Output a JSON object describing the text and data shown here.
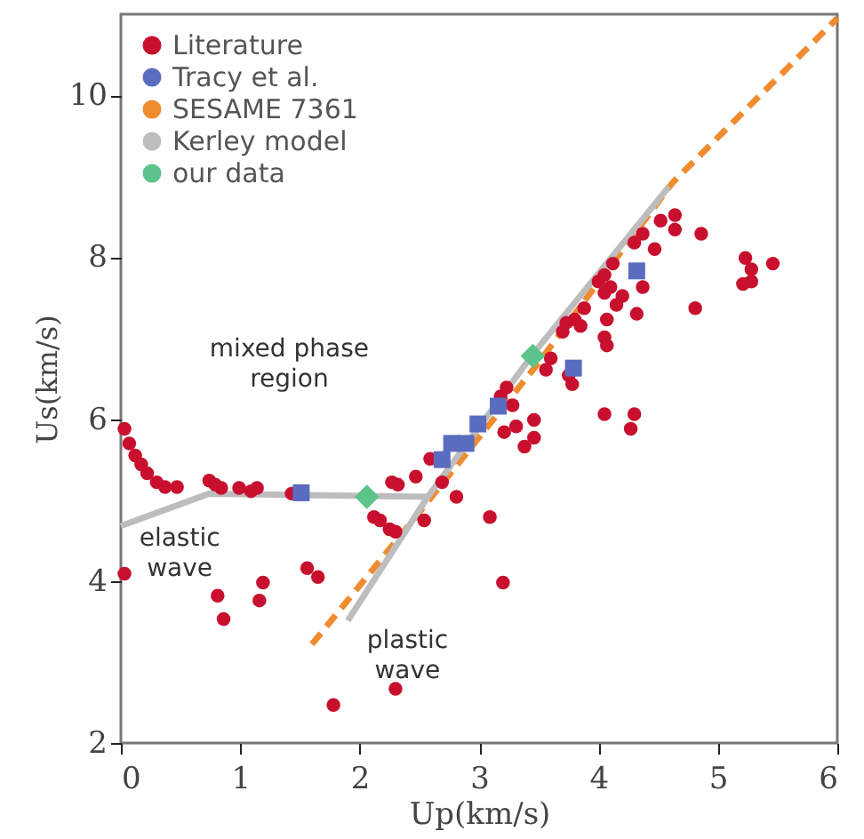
{
  "chart_data": {
    "type": "scatter",
    "xlabel": "Up(km/s)",
    "ylabel": "Us(km/s)",
    "xlim": [
      0,
      6
    ],
    "ylim": [
      2,
      11
    ],
    "xticks": [
      {
        "value": 0,
        "label": "0"
      },
      {
        "value": 1,
        "label": "1"
      },
      {
        "value": 2,
        "label": "2"
      },
      {
        "value": 3,
        "label": "3"
      },
      {
        "value": 4,
        "label": "4"
      },
      {
        "value": 5,
        "label": "5"
      },
      {
        "value": 6,
        "label": "6"
      }
    ],
    "yticks": [
      2,
      4,
      6,
      8,
      10
    ],
    "grid": false,
    "legend": "top left",
    "series": [
      {
        "name": "Literature",
        "marker": "circle",
        "color": "#c8102e",
        "x": [
          0.03,
          0.07,
          0.12,
          0.17,
          0.22,
          0.3,
          0.37,
          0.47,
          0.74,
          0.79,
          0.84,
          0.99,
          1.09,
          1.14,
          1.43,
          2.12,
          2.17,
          2.27,
          2.32,
          2.25,
          2.3,
          2.47,
          2.54,
          2.59,
          2.69,
          2.81,
          3.09,
          0.03,
          1.56,
          1.65,
          1.19,
          1.16,
          0.81,
          0.86,
          1.78,
          2.3,
          3.2,
          3.21,
          3.31,
          3.46,
          3.46,
          3.38,
          4.05,
          4.3,
          4.27,
          4.64,
          4.52,
          4.64,
          4.86,
          4.37,
          4.3,
          4.47,
          4.12,
          4.05,
          4.0,
          4.1,
          4.05,
          4.2,
          4.37,
          4.15,
          4.32,
          3.88,
          3.8,
          3.73,
          3.85,
          3.7,
          4.07,
          4.05,
          4.07,
          3.6,
          3.56,
          3.75,
          3.78,
          4.81,
          5.23,
          5.28,
          5.46,
          5.21,
          5.28,
          3.23,
          3.18,
          3.28
        ],
        "values": [
          5.88,
          5.7,
          5.55,
          5.44,
          5.33,
          5.22,
          5.16,
          5.16,
          5.24,
          5.19,
          5.15,
          5.15,
          5.11,
          5.15,
          5.08,
          4.79,
          4.75,
          5.22,
          5.19,
          4.64,
          4.61,
          5.29,
          4.75,
          5.51,
          5.22,
          5.04,
          4.79,
          4.09,
          4.16,
          4.05,
          3.98,
          3.76,
          3.82,
          3.53,
          2.47,
          2.67,
          3.98,
          5.84,
          5.91,
          5.99,
          5.77,
          5.66,
          6.06,
          6.06,
          5.88,
          8.52,
          8.45,
          8.34,
          8.29,
          8.29,
          8.18,
          8.1,
          7.92,
          7.78,
          7.7,
          7.63,
          7.56,
          7.52,
          7.63,
          7.41,
          7.3,
          7.37,
          7.23,
          7.19,
          7.15,
          7.08,
          7.23,
          7.01,
          6.91,
          6.75,
          6.61,
          6.54,
          6.43,
          7.37,
          7.99,
          7.85,
          7.92,
          7.67,
          7.7,
          6.39,
          6.28,
          6.17
        ]
      },
      {
        "name": "Tracy et al.",
        "marker": "square",
        "color": "#5a6cc0",
        "x": [
          1.51,
          2.69,
          2.77,
          2.89,
          2.99,
          3.16,
          3.79,
          4.32
        ],
        "values": [
          5.09,
          5.5,
          5.7,
          5.7,
          5.94,
          6.16,
          6.63,
          7.83
        ]
      },
      {
        "name": "SESAME 7361",
        "type": "line",
        "line_style": "dashed",
        "color": "#f08c30",
        "x": [
          1.6,
          2.5,
          3.5,
          4.62,
          6.0
        ],
        "values": [
          3.22,
          4.85,
          6.7,
          8.92,
          10.95
        ]
      },
      {
        "name": "Kerley model",
        "type": "line",
        "line_style": "solid",
        "color": "#bdbdbd",
        "x": [
          0,
          0.74,
          2.57,
          3.45,
          4.59,
          null,
          1.9,
          2.57
        ],
        "values": [
          4.68,
          5.08,
          5.04,
          6.8,
          8.87,
          null,
          3.51,
          5.04
        ]
      },
      {
        "name": "our data",
        "marker": "diamond",
        "color": "#5cc48a",
        "x": [
          2.06,
          3.45
        ],
        "values": [
          5.04,
          6.78
        ]
      }
    ],
    "annotations": [
      "mixed phase\nregion",
      "elastic\nwave",
      "plastic\nwave"
    ]
  }
}
